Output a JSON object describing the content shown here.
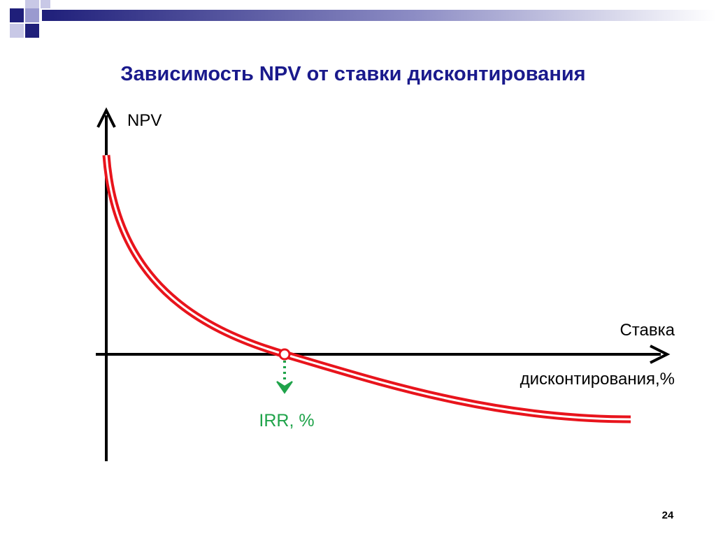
{
  "title": "Зависимость NPV от ставки дисконтирования",
  "axes": {
    "y_label": "NPV",
    "x_label_line1": "Ставка",
    "x_label_line2": "дисконтирования,%"
  },
  "annotation": "IRR, %",
  "page_number": "24"
}
